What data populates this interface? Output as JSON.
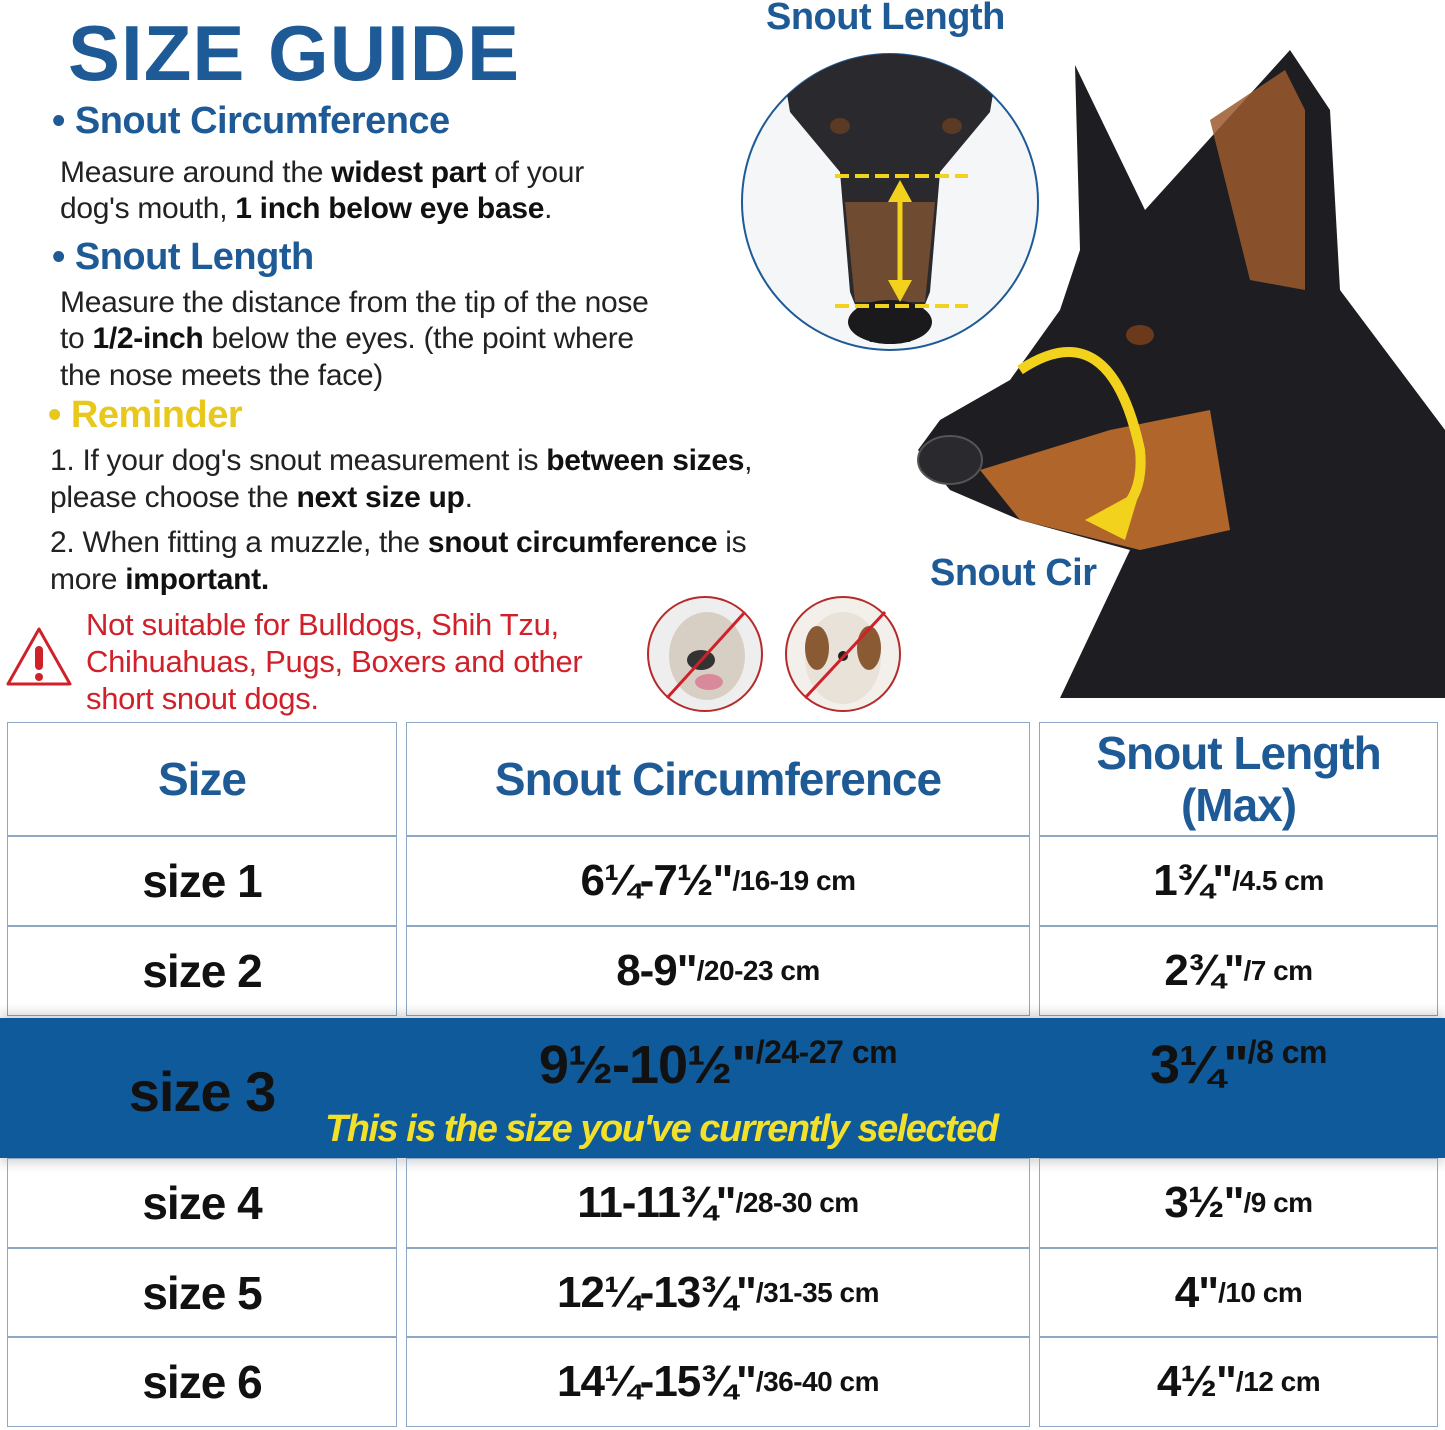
{
  "title": "SIZE GUIDE",
  "sections": {
    "circumference": {
      "heading": "Snout Circumference",
      "line1": [
        {
          "t": "Measure around the "
        },
        {
          "t": "widest part",
          "b": true
        },
        {
          "t": " of your"
        }
      ],
      "line2": [
        {
          "t": "dog's mouth, "
        },
        {
          "t": "1 inch below eye base",
          "b": true
        },
        {
          "t": "."
        }
      ]
    },
    "length": {
      "heading": "Snout Length",
      "line1": "Measure the distance from the tip of the nose",
      "line2": [
        {
          "t": "to "
        },
        {
          "t": "1/2-inch",
          "b": true
        },
        {
          "t": " below the eyes. (the point where"
        }
      ],
      "line3": "the nose meets the face)"
    },
    "reminder": {
      "heading": "Reminder",
      "r1a": [
        {
          "t": "1. If your dog's snout measurement is "
        },
        {
          "t": "between sizes",
          "b": true
        },
        {
          "t": ","
        }
      ],
      "r1b": [
        {
          "t": "please choose the "
        },
        {
          "t": "next size up",
          "b": true
        },
        {
          "t": "."
        }
      ],
      "r2a": [
        {
          "t": "2. When fitting a muzzle, the "
        },
        {
          "t": "snout circumference",
          "b": true
        },
        {
          "t": " is"
        }
      ],
      "r2b": [
        {
          "t": "more "
        },
        {
          "t": "important.",
          "b": true
        }
      ]
    }
  },
  "warning": {
    "icon": "warning-triangle-icon",
    "text": "Not suitable for Bulldogs, Shih Tzu, Chihuahuas, Pugs, Boxers and other short snout dogs."
  },
  "diagram": {
    "snout_length_label": "Snout Length",
    "snout_cir_label": "Snout Cir"
  },
  "table": {
    "headers": [
      "Size",
      "Snout Circumference",
      "Snout Length (Max)"
    ],
    "rows": [
      {
        "size": "size 1",
        "circ_in": "6¼-7½\"",
        "circ_cm": "/16-19 cm",
        "len_in": "1¾\"",
        "len_cm": "/4.5 cm"
      },
      {
        "size": "size 2",
        "circ_in": "8-9\"",
        "circ_cm": "/20-23 cm",
        "len_in": "2¾\"",
        "len_cm": "/7 cm"
      },
      {
        "size": "size 3",
        "circ_in": "9½-10½\"",
        "circ_cm": "/24-27 cm",
        "len_in": "3¼\"",
        "len_cm": "/8 cm",
        "selected": true
      },
      {
        "size": "size 4",
        "circ_in": "11-11¾\"",
        "circ_cm": "/28-30 cm",
        "len_in": "3½\"",
        "len_cm": "/9 cm"
      },
      {
        "size": "size 5",
        "circ_in": "12¼-13¾\"",
        "circ_cm": "/31-35 cm",
        "len_in": "4\"",
        "len_cm": "/10 cm"
      },
      {
        "size": "size 6",
        "circ_in": "14¼-15¾\"",
        "circ_cm": "/36-40 cm",
        "len_in": "4½\"",
        "len_cm": "/12 cm"
      }
    ],
    "selected_note": "This is the size you've currently selected"
  },
  "colors": {
    "brand_blue": "#1d5a96",
    "band_blue": "#0f5a9a",
    "accent_yellow": "#f2e02a",
    "warning_red": "#d0202a"
  }
}
